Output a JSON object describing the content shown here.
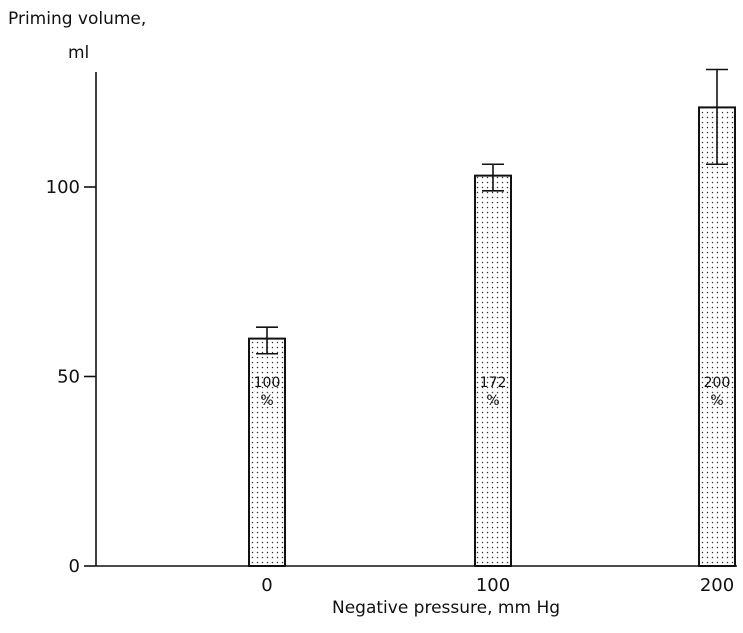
{
  "chart_data": {
    "type": "bar",
    "ylabel_line1": "Priming volume,",
    "ylabel_line2": "ml",
    "xlabel": "Negative pressure, mm Hg",
    "categories": [
      "0",
      "100",
      "200"
    ],
    "values": [
      60,
      103,
      121
    ],
    "error_low": [
      56,
      99,
      106
    ],
    "error_high": [
      63,
      106,
      131
    ],
    "bar_labels": [
      {
        "line1": "100",
        "line2": "%"
      },
      {
        "line1": "172",
        "line2": "%"
      },
      {
        "line1": "200",
        "line2": "%"
      }
    ],
    "yticks": [
      0,
      50,
      100
    ],
    "ylim": [
      0,
      130
    ],
    "grid": false,
    "bar_fill": "dotted"
  }
}
